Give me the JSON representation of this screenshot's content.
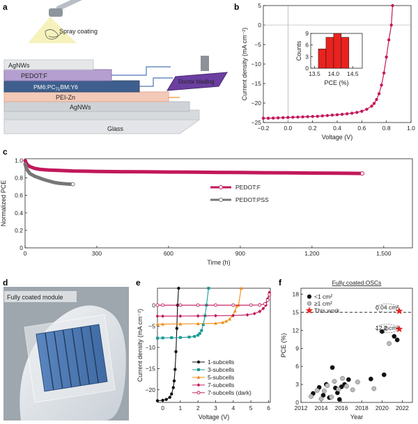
{
  "panels": {
    "a": {
      "label": "a",
      "spray_label": "Spray coating",
      "doctor_label": "Doctor blading",
      "layers": [
        "AgNWs",
        "PEDOT:F",
        "PM6:PC71BM:Y6",
        "PEI-Zn",
        "AgNWs",
        "Glass"
      ],
      "active_layer_parts": {
        "pre": "PM6:PC",
        "sub": "71",
        "post": "BM:Y6"
      }
    },
    "b": {
      "label": "b",
      "ylabel": "Current density (mA cm⁻²)",
      "xlabel": "Voltage (V)",
      "inset_ylabel": "Counts",
      "inset_xlabel": "PCE (%)"
    },
    "c": {
      "label": "c",
      "ylabel": "Normalized PCE",
      "xlabel": "Time (h)"
    },
    "d": {
      "label": "d",
      "photo_label": "Fully coated module"
    },
    "e": {
      "label": "e",
      "ylabel": "Current density (mA cm⁻²)",
      "xlabel": "Voltage (V)"
    },
    "f": {
      "label": "f",
      "title": "Fully coated OSCs",
      "ylabel": "PCE (%)",
      "xlabel": "Year",
      "annot_small": "0.04 cm²",
      "annot_large": "12.2 cm²"
    }
  },
  "colors": {
    "magenta": "#c2185b",
    "gray": "#777777",
    "teal": "#1a9a96",
    "orange": "#f28c14",
    "black": "#111111",
    "red": "#e8231f",
    "blue_film": "#4a78b5",
    "purple": "#9b6fc4",
    "pink_layer": "#f3c9b8"
  },
  "chart_data": [
    {
      "id": "b",
      "type": "line",
      "xlabel": "Voltage (V)",
      "ylabel": "Current density (mA cm⁻²)",
      "xlim": [
        -0.2,
        1.0
      ],
      "ylim": [
        -25,
        5
      ],
      "xticks": [
        -0.2,
        0.0,
        0.2,
        0.4,
        0.6,
        0.8,
        1.0
      ],
      "xtick_labels": [
        "−0.2",
        "0.0",
        "0.2",
        "0.4",
        "0.6",
        "0.8",
        "1.0"
      ],
      "yticks": [
        -25,
        -20,
        -15,
        -10,
        -5,
        0,
        5
      ],
      "ytick_labels": [
        "−25",
        "−20",
        "−15",
        "−10",
        "−5",
        "0",
        "5"
      ],
      "series": [
        {
          "color": "#c2185b",
          "x": [
            -0.2,
            -0.16,
            -0.12,
            -0.08,
            -0.04,
            0.0,
            0.04,
            0.08,
            0.12,
            0.16,
            0.2,
            0.24,
            0.28,
            0.32,
            0.36,
            0.4,
            0.44,
            0.48,
            0.52,
            0.56,
            0.6,
            0.64,
            0.68,
            0.7,
            0.72,
            0.74,
            0.76,
            0.78,
            0.8,
            0.82,
            0.84,
            0.85
          ],
          "y": [
            -23.9,
            -23.9,
            -23.85,
            -23.8,
            -23.75,
            -23.7,
            -23.65,
            -23.6,
            -23.55,
            -23.5,
            -23.45,
            -23.4,
            -23.3,
            -23.2,
            -23.1,
            -23.0,
            -22.9,
            -22.75,
            -22.6,
            -22.4,
            -22.1,
            -21.6,
            -20.8,
            -20.1,
            -19.1,
            -17.6,
            -15.4,
            -12.3,
            -8.2,
            -3.8,
            0.0,
            5.0
          ]
        }
      ],
      "inset": {
        "type": "bar",
        "xlabel": "PCE (%)",
        "ylabel": "Counts",
        "xlim": [
          13.4,
          14.75
        ],
        "ylim": [
          0,
          9
        ],
        "xticks": [
          13.5,
          14.0,
          14.5
        ],
        "xtick_labels": [
          "13.5",
          "14.0",
          "14.5"
        ],
        "yticks": [
          0,
          3,
          6,
          9
        ],
        "ytick_labels": [
          "0",
          "3",
          "6",
          "9"
        ],
        "bins": [
          13.7,
          13.9,
          14.1,
          14.3,
          14.5
        ],
        "bin_width": 0.2,
        "values": [
          5,
          8,
          9,
          8,
          0
        ],
        "color": "#e8231f"
      }
    },
    {
      "id": "c",
      "type": "line",
      "xlabel": "Time (h)",
      "ylabel": "Normalized PCE",
      "xlim": [
        0,
        1620
      ],
      "ylim": [
        0,
        1.02
      ],
      "xticks": [
        0,
        300,
        600,
        900,
        1200,
        1500
      ],
      "xtick_labels": [
        "0",
        "300",
        "600",
        "900",
        "1,200",
        "1,500"
      ],
      "yticks": [
        0,
        0.2,
        0.4,
        0.6,
        0.8,
        1.0
      ],
      "ytick_labels": [
        "0",
        "0.2",
        "0.4",
        "0.6",
        "0.8",
        "1.0"
      ],
      "series": [
        {
          "name": "PEDOT:F",
          "color": "#c2185b",
          "x": [
            0,
            5,
            10,
            20,
            40,
            60,
            80,
            100,
            150,
            200,
            300,
            400,
            500,
            600,
            700,
            800,
            900,
            1000,
            1100,
            1200,
            1300,
            1410
          ],
          "y": [
            1.0,
            0.97,
            0.95,
            0.93,
            0.91,
            0.9,
            0.895,
            0.89,
            0.885,
            0.88,
            0.875,
            0.872,
            0.87,
            0.868,
            0.866,
            0.864,
            0.862,
            0.86,
            0.858,
            0.856,
            0.854,
            0.852
          ]
        },
        {
          "name": "PEDOT:PSS",
          "color": "#777777",
          "x": [
            0,
            5,
            10,
            20,
            40,
            60,
            80,
            100,
            120,
            140,
            160,
            180,
            200
          ],
          "y": [
            0.96,
            0.91,
            0.89,
            0.85,
            0.82,
            0.8,
            0.78,
            0.765,
            0.75,
            0.74,
            0.735,
            0.73,
            0.728
          ]
        }
      ]
    },
    {
      "id": "e",
      "type": "line",
      "xlabel": "Voltage (V)",
      "ylabel": "Current density (mA cm⁻²)",
      "xlim": [
        -0.3,
        6.1
      ],
      "ylim": [
        -23,
        4
      ],
      "xticks": [
        0,
        1,
        2,
        3,
        4,
        5,
        6
      ],
      "xtick_labels": [
        "0",
        "1",
        "2",
        "3",
        "4",
        "5",
        "6"
      ],
      "yticks": [
        -20,
        -15,
        -10,
        -5,
        0
      ],
      "ytick_labels": [
        "−20",
        "−15",
        "−10",
        "−5",
        "0"
      ],
      "series": [
        {
          "name": "1-subcells",
          "color": "#111111",
          "marker": "circle",
          "x": [
            -0.3,
            0,
            0.2,
            0.4,
            0.5,
            0.6,
            0.65,
            0.7,
            0.75,
            0.8,
            0.84,
            0.9
          ],
          "y": [
            -22.6,
            -22.5,
            -22.3,
            -21.8,
            -21.0,
            -19.5,
            -17.9,
            -15.2,
            -11.0,
            -5.5,
            0,
            4
          ]
        },
        {
          "name": "3-subcells",
          "color": "#1a9a96",
          "marker": "square",
          "x": [
            -0.3,
            0,
            0.5,
            1.0,
            1.5,
            1.8,
            2.0,
            2.1,
            2.2,
            2.3,
            2.4,
            2.48,
            2.6
          ],
          "y": [
            -7.8,
            -7.75,
            -7.7,
            -7.65,
            -7.55,
            -7.4,
            -7.1,
            -6.7,
            -6.0,
            -4.6,
            -2.5,
            0,
            4
          ]
        },
        {
          "name": "5-subcells",
          "color": "#f28c14",
          "marker": "triangle",
          "x": [
            -0.3,
            0,
            1,
            2,
            3,
            3.4,
            3.6,
            3.8,
            3.95,
            4.1,
            4.2,
            4.3,
            4.45
          ],
          "y": [
            -4.5,
            -4.5,
            -4.45,
            -4.4,
            -4.3,
            -4.1,
            -3.8,
            -3.3,
            -2.5,
            -1.4,
            -0.2,
            0,
            4
          ]
        },
        {
          "name": "7-subcells",
          "color": "#c2185b",
          "marker": "diamond",
          "x": [
            -0.3,
            0,
            1,
            2,
            3,
            4,
            4.8,
            5.2,
            5.5,
            5.7,
            5.85,
            5.95,
            6.05
          ],
          "y": [
            -2.6,
            -2.6,
            -2.58,
            -2.55,
            -2.5,
            -2.45,
            -2.3,
            -2.0,
            -1.5,
            -0.8,
            0,
            1.5,
            3
          ]
        },
        {
          "name": "7-subcells (dark)",
          "color": "#c2185b",
          "marker": "open",
          "x": [
            -0.3,
            0,
            1,
            2,
            3,
            4,
            5,
            5.5,
            5.8,
            5.95,
            6.05
          ],
          "y": [
            0,
            0,
            0,
            0,
            0,
            0,
            0,
            0.05,
            0.3,
            1.2,
            2.5
          ]
        }
      ]
    },
    {
      "id": "f",
      "type": "scatter",
      "title": "Fully coated OSCs",
      "xlabel": "Year",
      "ylabel": "PCE (%)",
      "xlim": [
        2012,
        2023
      ],
      "ylim": [
        0,
        19
      ],
      "xticks": [
        2012,
        2014,
        2016,
        2018,
        2020,
        2022
      ],
      "xtick_labels": [
        "2012",
        "2014",
        "2016",
        "2018",
        "2020",
        "2022"
      ],
      "yticks": [
        0,
        3,
        6,
        9,
        12,
        15,
        18
      ],
      "ytick_labels": [
        "0",
        "3",
        "6",
        "9",
        "12",
        "15",
        "18"
      ],
      "reference_line": 15,
      "series": [
        {
          "name": "<1 cm²",
          "color": "#111111",
          "x": [
            2013.2,
            2013.8,
            2014.2,
            2014.5,
            2014.8,
            2015.1,
            2015.4,
            2015.6,
            2015.8,
            2016.0,
            2016.3,
            2016.7,
            2018.9,
            2020.0,
            2020.2,
            2021.2,
            2021.5
          ],
          "y": [
            1.5,
            2.5,
            1.2,
            3.0,
            0.8,
            5.8,
            2.4,
            1.6,
            0.5,
            2.6,
            3.0,
            3.8,
            3.9,
            11.8,
            4.6,
            11.0,
            10.4
          ]
        },
        {
          "name": "≥1 cm²",
          "color": "#bbbbbb",
          "x": [
            2013.0,
            2013.6,
            2014.0,
            2014.3,
            2014.6,
            2015.0,
            2015.3,
            2015.7,
            2016.1,
            2016.5,
            2017.1,
            2017.6,
            2019.2,
            2020.4,
            2020.7
          ],
          "y": [
            1.0,
            2.0,
            0.6,
            1.9,
            2.8,
            0.9,
            3.5,
            2.2,
            4.0,
            2.7,
            2.1,
            3.4,
            2.3,
            12.3,
            9.8
          ]
        },
        {
          "name": "This work",
          "color": "#e8231f",
          "marker": "star",
          "x": [
            2021.7,
            2021.7
          ],
          "y": [
            15.2,
            12.2
          ]
        }
      ]
    }
  ]
}
